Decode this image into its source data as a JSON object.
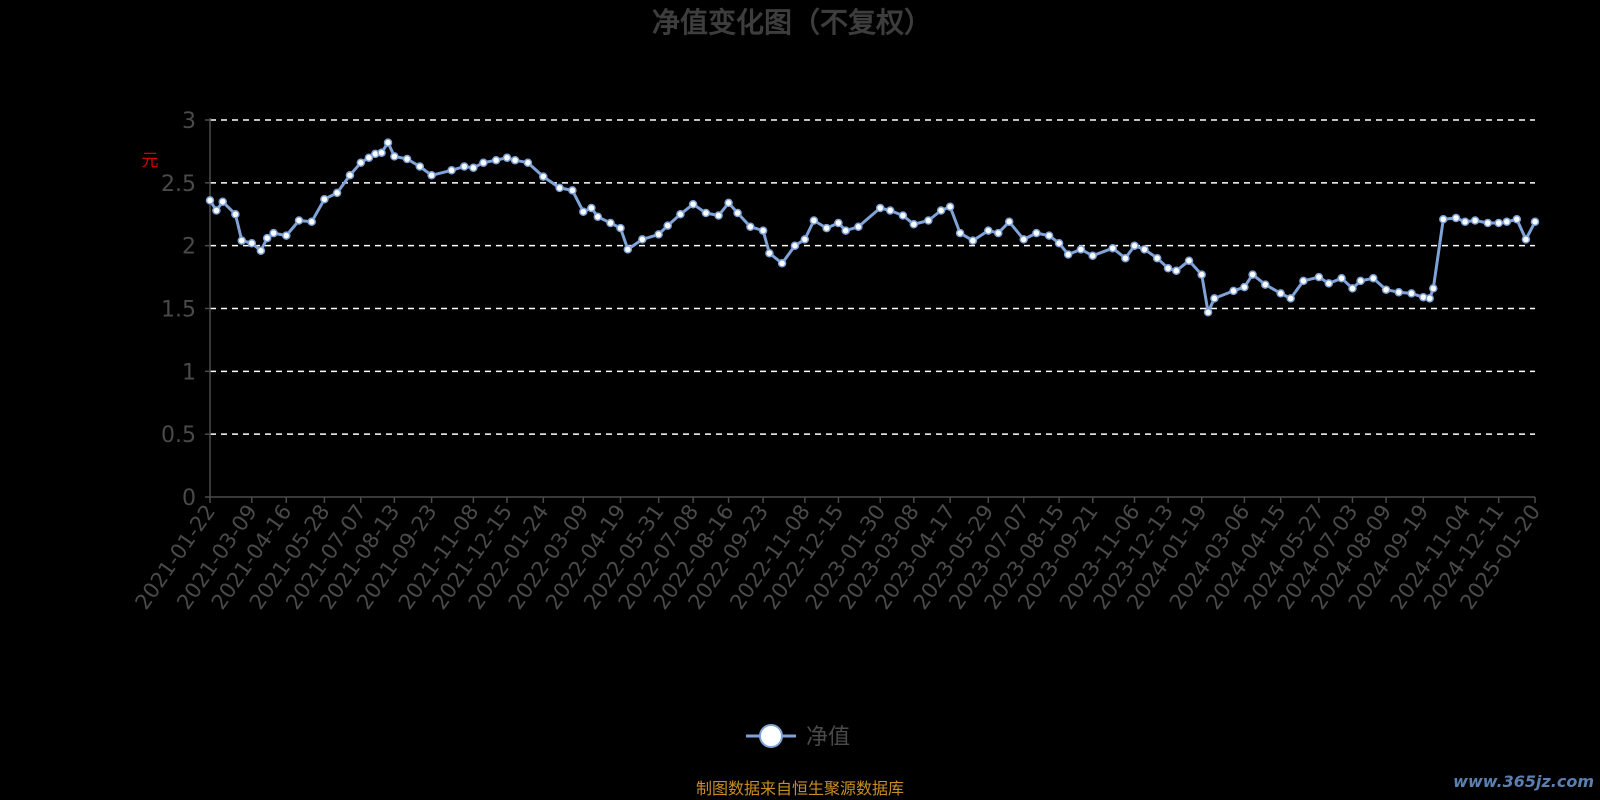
{
  "source_note": "制图数据来自恒生聚源数据库",
  "watermark": "www.365jz.com",
  "colors": {
    "background": "#000000",
    "line": "#7fa3d6",
    "grid": "#ffffff",
    "axis": "#4a4a4a",
    "title": "#3d3d3d",
    "ylabel": "#d40000",
    "source": "#c98d25"
  },
  "chart_data": {
    "type": "line",
    "title": "净值变化图（不复权）",
    "ylabel": "元",
    "xlabel": "",
    "ylim": [
      0,
      3
    ],
    "yticks": [
      0,
      0.5,
      1,
      1.5,
      2,
      2.5,
      3
    ],
    "grid": "horizontal dashed",
    "legend": {
      "position": "bottom-center",
      "entries": [
        "净值"
      ]
    },
    "x_tick_labels": [
      "2021-01-22",
      "2021-03-09",
      "2021-04-16",
      "2021-05-28",
      "2021-07-07",
      "2021-08-13",
      "2021-09-23",
      "2021-11-08",
      "2021-12-15",
      "2022-01-24",
      "2022-03-09",
      "2022-04-19",
      "2022-05-31",
      "2022-07-08",
      "2022-08-16",
      "2022-09-23",
      "2022-11-08",
      "2022-12-15",
      "2023-01-30",
      "2023-03-08",
      "2023-04-17",
      "2023-05-29",
      "2023-07-07",
      "2023-08-15",
      "2023-09-21",
      "2023-11-06",
      "2023-12-13",
      "2024-01-19",
      "2024-03-06",
      "2024-04-15",
      "2024-05-27",
      "2024-07-03",
      "2024-08-09",
      "2024-09-19",
      "2024-11-04",
      "2024-12-11",
      "2025-01-20"
    ],
    "series": [
      {
        "name": "净值",
        "x": [
          "2021-01-22",
          "2021-01-29",
          "2021-02-05",
          "2021-02-19",
          "2021-02-26",
          "2021-03-09",
          "2021-03-19",
          "2021-03-26",
          "2021-04-02",
          "2021-04-16",
          "2021-04-30",
          "2021-05-14",
          "2021-05-28",
          "2021-06-11",
          "2021-06-25",
          "2021-07-07",
          "2021-07-16",
          "2021-07-23",
          "2021-07-30",
          "2021-08-06",
          "2021-08-13",
          "2021-08-27",
          "2021-09-10",
          "2021-09-23",
          "2021-10-15",
          "2021-10-29",
          "2021-11-08",
          "2021-11-19",
          "2021-12-03",
          "2021-12-15",
          "2021-12-24",
          "2022-01-07",
          "2022-01-24",
          "2022-02-11",
          "2022-02-25",
          "2022-03-09",
          "2022-03-18",
          "2022-03-25",
          "2022-04-08",
          "2022-04-19",
          "2022-04-27",
          "2022-05-13",
          "2022-05-31",
          "2022-06-10",
          "2022-06-24",
          "2022-07-08",
          "2022-07-22",
          "2022-08-05",
          "2022-08-16",
          "2022-08-26",
          "2022-09-09",
          "2022-09-23",
          "2022-09-30",
          "2022-10-14",
          "2022-10-28",
          "2022-11-08",
          "2022-11-18",
          "2022-12-02",
          "2022-12-15",
          "2022-12-23",
          "2023-01-06",
          "2023-01-30",
          "2023-02-10",
          "2023-02-24",
          "2023-03-08",
          "2023-03-24",
          "2023-04-07",
          "2023-04-17",
          "2023-04-28",
          "2023-05-12",
          "2023-05-29",
          "2023-06-09",
          "2023-06-21",
          "2023-07-07",
          "2023-07-21",
          "2023-08-04",
          "2023-08-15",
          "2023-08-25",
          "2023-09-08",
          "2023-09-21",
          "2023-10-13",
          "2023-10-27",
          "2023-11-06",
          "2023-11-17",
          "2023-12-01",
          "2023-12-13",
          "2023-12-22",
          "2024-01-05",
          "2024-01-19",
          "2024-01-26",
          "2024-02-02",
          "2024-02-23",
          "2024-03-06",
          "2024-03-15",
          "2024-03-29",
          "2024-04-15",
          "2024-04-26",
          "2024-05-10",
          "2024-05-27",
          "2024-06-07",
          "2024-06-21",
          "2024-07-03",
          "2024-07-12",
          "2024-07-26",
          "2024-08-09",
          "2024-08-23",
          "2024-09-06",
          "2024-09-19",
          "2024-09-26",
          "2024-09-30",
          "2024-10-11",
          "2024-10-25",
          "2024-11-04",
          "2024-11-15",
          "2024-11-29",
          "2024-12-11",
          "2024-12-20",
          "2024-12-31",
          "2025-01-10",
          "2025-01-20"
        ],
        "values": [
          2.36,
          2.28,
          2.35,
          2.25,
          2.04,
          2.02,
          1.96,
          2.06,
          2.1,
          2.08,
          2.2,
          2.19,
          2.37,
          2.42,
          2.56,
          2.66,
          2.7,
          2.73,
          2.74,
          2.82,
          2.71,
          2.69,
          2.63,
          2.56,
          2.6,
          2.63,
          2.62,
          2.66,
          2.68,
          2.7,
          2.68,
          2.66,
          2.55,
          2.46,
          2.44,
          2.27,
          2.3,
          2.23,
          2.18,
          2.14,
          1.97,
          2.05,
          2.09,
          2.16,
          2.25,
          2.33,
          2.26,
          2.24,
          2.34,
          2.26,
          2.15,
          2.12,
          1.94,
          1.86,
          2.0,
          2.05,
          2.2,
          2.14,
          2.18,
          2.12,
          2.15,
          2.3,
          2.28,
          2.24,
          2.17,
          2.2,
          2.28,
          2.31,
          2.1,
          2.04,
          2.12,
          2.1,
          2.19,
          2.05,
          2.1,
          2.08,
          2.02,
          1.93,
          1.97,
          1.92,
          1.98,
          1.9,
          2.0,
          1.97,
          1.9,
          1.82,
          1.8,
          1.88,
          1.77,
          1.47,
          1.58,
          1.64,
          1.67,
          1.77,
          1.69,
          1.62,
          1.58,
          1.72,
          1.75,
          1.7,
          1.74,
          1.66,
          1.72,
          1.74,
          1.65,
          1.63,
          1.62,
          1.59,
          1.58,
          1.66,
          2.21,
          2.22,
          2.19,
          2.2,
          2.18,
          2.18,
          2.19,
          2.21,
          2.05,
          2.19
        ]
      }
    ]
  }
}
